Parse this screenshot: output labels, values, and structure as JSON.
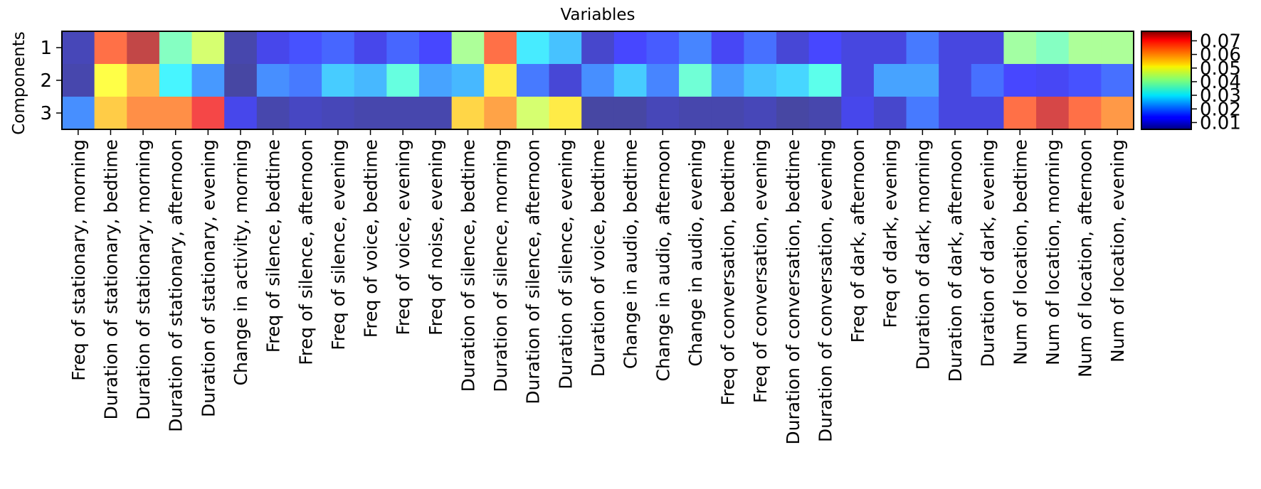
{
  "chart_data": {
    "type": "heatmap",
    "title": "Variables",
    "xlabel": "",
    "ylabel": "Components",
    "rows": [
      "1",
      "2",
      "3"
    ],
    "columns": [
      "Freq of stationary, morning",
      "Duration of stationary, bedtime",
      "Duration of stationary, morning",
      "Duration of stationary, afternoon",
      "Duration of stationary, evening",
      "Change in activity, morning",
      "Freq of silence, bedtime",
      "Freq of silence, afternoon",
      "Freq of silence, evening",
      "Freq of voice, bedtime",
      "Freq of voice, evening",
      "Freq of noise, evening",
      "Duration of silence, bedtime",
      "Duration of silence, morning",
      "Duration of silence, afternoon",
      "Duration of silence, evening",
      "Duration of voice, bedtime",
      "Change in audio, bedtime",
      "Change in audio, afternoon",
      "Change in audio, evening",
      "Freq of conversation, bedtime",
      "Freq of conversation, evening",
      "Duration of conversation, bedtime",
      "Duration of conversation, evening",
      "Freq of dark, afternoon",
      "Freq of dark, evening",
      "Duration of dark, morning",
      "Duration of dark, afternoon",
      "Duration of dark, evening",
      "Num of location, bedtime",
      "Num of location, morning",
      "Num of location, afternoon",
      "Num of location, evening"
    ],
    "values": [
      [
        0.007,
        0.064,
        0.074,
        0.038,
        0.046,
        0.006,
        0.012,
        0.015,
        0.017,
        0.012,
        0.017,
        0.014,
        0.042,
        0.064,
        0.03,
        0.026,
        0.009,
        0.014,
        0.016,
        0.02,
        0.013,
        0.018,
        0.01,
        0.014,
        0.011,
        0.011,
        0.019,
        0.011,
        0.011,
        0.041,
        0.038,
        0.042,
        0.042
      ],
      [
        0.006,
        0.05,
        0.057,
        0.031,
        0.022,
        0.005,
        0.021,
        0.019,
        0.027,
        0.025,
        0.035,
        0.023,
        0.025,
        0.052,
        0.019,
        0.01,
        0.021,
        0.027,
        0.02,
        0.036,
        0.022,
        0.026,
        0.028,
        0.034,
        0.011,
        0.023,
        0.023,
        0.011,
        0.018,
        0.014,
        0.013,
        0.015,
        0.018
      ],
      [
        0.021,
        0.055,
        0.061,
        0.061,
        0.069,
        0.012,
        0.006,
        0.008,
        0.007,
        0.006,
        0.006,
        0.006,
        0.054,
        0.059,
        0.046,
        0.052,
        0.005,
        0.005,
        0.007,
        0.006,
        0.006,
        0.007,
        0.005,
        0.006,
        0.012,
        0.009,
        0.019,
        0.011,
        0.011,
        0.064,
        0.072,
        0.064,
        0.06
      ]
    ],
    "vmin": 0.005,
    "vmax": 0.077,
    "colormap": "jet",
    "colorbar_ticks": [
      0.01,
      0.02,
      0.03,
      0.04,
      0.05,
      0.06,
      0.07
    ],
    "colorbar_tick_labels": [
      "0.01",
      "0.02",
      "0.03",
      "0.04",
      "0.05",
      "0.06",
      "0.07"
    ]
  }
}
